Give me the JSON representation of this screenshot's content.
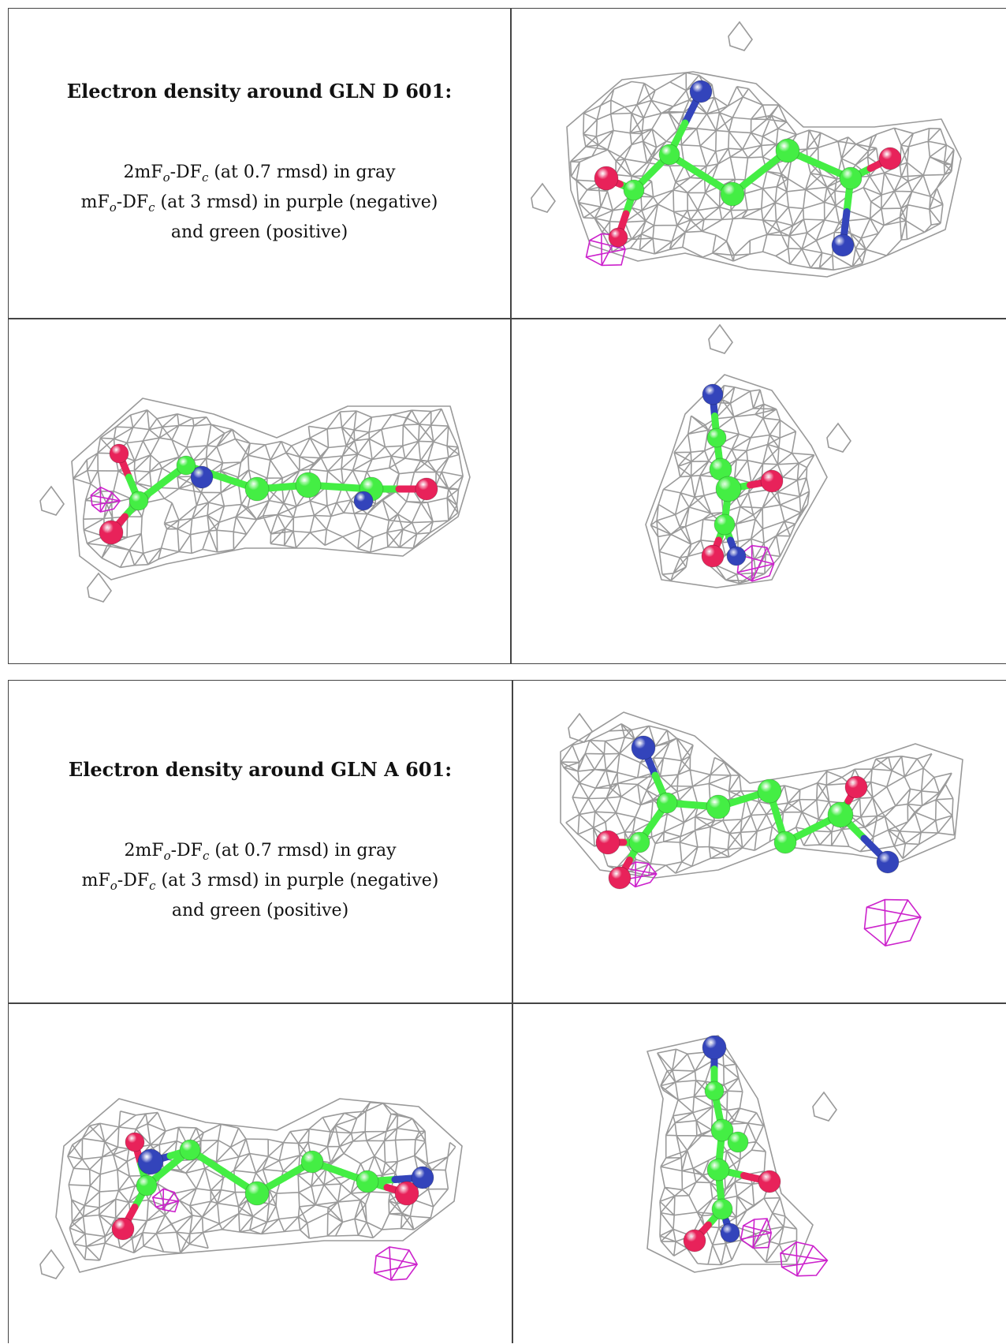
{
  "panels": [
    {
      "heading": "Electron density around GLN D 601:",
      "line1": {
        "pre": "2mF",
        "s1": "o",
        "mid": "-DF",
        "s2": "c",
        "post": " (at 0.7 rmsd) in gray"
      },
      "line2": {
        "pre": "mF",
        "s1": "o",
        "mid": "-DF",
        "s2": "c",
        "post": " (at 3 rmsd) in purple (negative)"
      },
      "line3": "and green (positive)"
    },
    {
      "heading": "Electron density around GLN A 601:",
      "line1": {
        "pre": "2mF",
        "s1": "o",
        "mid": "-DF",
        "s2": "c",
        "post": " (at 0.7 rmsd) in gray"
      },
      "line2": {
        "pre": "mF",
        "s1": "o",
        "mid": "-DF",
        "s2": "c",
        "post": " (at 3 rmsd) in purple (negative)"
      },
      "line3": "and green (positive)"
    }
  ],
  "colors": {
    "mesh_2fofc": "#9a9a9a",
    "mesh_negative": "#cc22cc",
    "carbon": "#44ee44",
    "oxygen": "#e8225a",
    "nitrogen": "#3344bb"
  }
}
